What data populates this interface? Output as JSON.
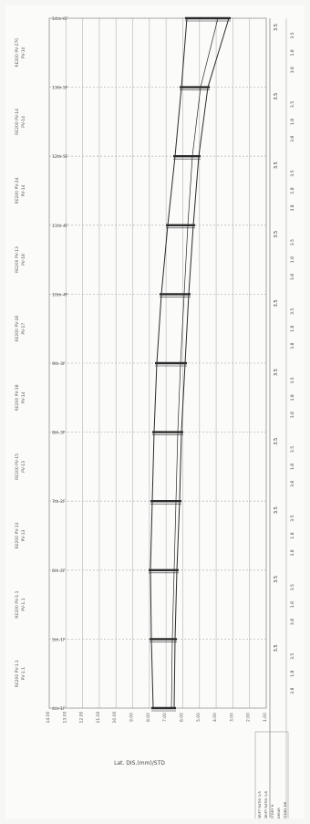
{
  "sheet": {
    "floor_labels": [
      "14th-6F",
      "13th-5F",
      "12th-5F",
      "11th-4F",
      "10th-4F",
      "9th-3F",
      "8th-3F",
      "7th-2F",
      "6th-2F",
      "5th-1F",
      "4th-1F"
    ],
    "side_notes": [
      "RE200 PV-270\nPV-10",
      "RE200 PV-14\nPV-14",
      "RE200 PV-24\nPV-14",
      "RE200 PV-13\nPV-18",
      "RE200 PV-16\nPV-17",
      "RE200 PV-18\nPV-14",
      "RE200 PV-15\nPV-13",
      "RE200 PV-13\nPV-13",
      "RE200 PV-1.1\nPV-1.1",
      "RE200 PV-1.1\nPV-1.1"
    ],
    "axis_ticks": [
      "14.00",
      "13.00",
      "12.00",
      "11.00",
      "10.00",
      "9.00",
      "8.00",
      "7.00",
      "6.00",
      "5.00",
      "4.00",
      "3.00",
      "2.00",
      "1.00"
    ],
    "axis_title": "Lat. DIS.(mm)/STD",
    "right_col": [
      {
        "top": "3.5",
        "rows": [
          "3.5",
          "1.8",
          "3.8"
        ]
      },
      {
        "top": "3.5",
        "rows": [
          "3.5",
          "1.8",
          "3.8"
        ]
      },
      {
        "top": "3.5",
        "rows": [
          "3.5",
          "1.8",
          "3.8"
        ]
      },
      {
        "top": "3.5",
        "rows": [
          "3.5",
          "1.8",
          "3.8"
        ]
      },
      {
        "top": "3.5",
        "rows": [
          "3.5",
          "1.8",
          "3.8"
        ]
      },
      {
        "top": "3.5",
        "rows": [
          "3.5",
          "1.8",
          "3.8"
        ]
      },
      {
        "top": "3.5",
        "rows": [
          "3.5",
          "1.8",
          "3.8"
        ]
      },
      {
        "top": "3.5",
        "rows": [
          "3.5",
          "1.8",
          "3.8"
        ]
      },
      {
        "top": "3.5",
        "rows": [
          "3.5",
          "1.8",
          "3.8"
        ]
      },
      {
        "top": "3.5",
        "rows": [
          "3.5",
          "1.8",
          "3.8"
        ]
      }
    ],
    "bottom_table": [
      "DRIFT RATIO 1/5",
      "DRIFT RATIO 1/8",
      "STORY H",
      "SHEAR",
      "STORY DR"
    ],
    "colors": {
      "grid": "#bdbdbd",
      "line": "#2a2a2a",
      "paper": "#fbfbfa"
    }
  }
}
